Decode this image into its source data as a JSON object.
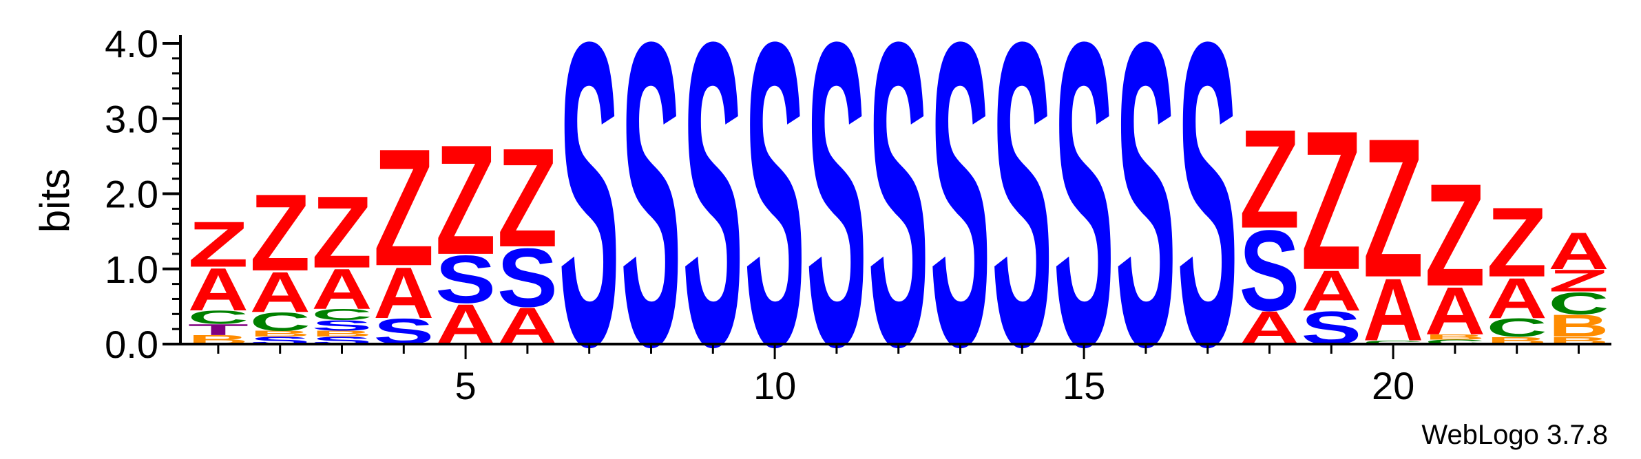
{
  "chart_data": {
    "type": "sequence-logo",
    "ylabel": "bits",
    "xlabel": "",
    "ylim": [
      0,
      4.0
    ],
    "y_ticks": [
      "0.0",
      "1.0",
      "2.0",
      "3.0",
      "4.0"
    ],
    "x_tick_labels": [
      "5",
      "10",
      "15",
      "20"
    ],
    "x_tick_positions": [
      5,
      10,
      15,
      20
    ],
    "positions": [
      1,
      2,
      3,
      4,
      5,
      6,
      7,
      8,
      9,
      10,
      11,
      12,
      13,
      14,
      15,
      16,
      17,
      18,
      19,
      20,
      21,
      22,
      23
    ],
    "footer": "WebLogo 3.7.8",
    "colors": {
      "Z": "#ff0000",
      "A": "#ff0000",
      "S": "#0000ff",
      "C": "#008000",
      "T": "#800080",
      "B": "#ff8c00"
    },
    "stacks": [
      [
        {
          "l": "B",
          "h": 0.12
        },
        {
          "l": "T",
          "h": 0.15
        },
        {
          "l": "C",
          "h": 0.18
        },
        {
          "l": "A",
          "h": 0.58
        },
        {
          "l": "Z",
          "h": 0.62
        }
      ],
      [
        {
          "l": "S",
          "h": 0.1
        },
        {
          "l": "B",
          "h": 0.08
        },
        {
          "l": "C",
          "h": 0.25
        },
        {
          "l": "A",
          "h": 0.55
        },
        {
          "l": "Z",
          "h": 1.05
        }
      ],
      [
        {
          "l": "S",
          "h": 0.1
        },
        {
          "l": "B",
          "h": 0.08
        },
        {
          "l": "S",
          "h": 0.14
        },
        {
          "l": "C",
          "h": 0.15
        },
        {
          "l": "A",
          "h": 0.55
        },
        {
          "l": "Z",
          "h": 0.98
        }
      ],
      [
        {
          "l": "S",
          "h": 0.35
        },
        {
          "l": "A",
          "h": 0.7
        },
        {
          "l": "Z",
          "h": 1.6
        }
      ],
      [
        {
          "l": "A",
          "h": 0.55
        },
        {
          "l": "S",
          "h": 0.65
        },
        {
          "l": "Z",
          "h": 1.5
        }
      ],
      [
        {
          "l": "A",
          "h": 0.5
        },
        {
          "l": "S",
          "h": 0.8
        },
        {
          "l": "Z",
          "h": 1.35
        }
      ],
      [
        {
          "l": "S",
          "h": 4.15
        }
      ],
      [
        {
          "l": "S",
          "h": 4.15
        }
      ],
      [
        {
          "l": "S",
          "h": 4.15
        }
      ],
      [
        {
          "l": "S",
          "h": 4.15
        }
      ],
      [
        {
          "l": "S",
          "h": 4.15
        }
      ],
      [
        {
          "l": "S",
          "h": 4.15
        }
      ],
      [
        {
          "l": "S",
          "h": 4.15
        }
      ],
      [
        {
          "l": "S",
          "h": 4.15
        }
      ],
      [
        {
          "l": "S",
          "h": 4.15
        }
      ],
      [
        {
          "l": "S",
          "h": 4.15
        }
      ],
      [
        {
          "l": "S",
          "h": 4.15
        }
      ],
      [
        {
          "l": "A",
          "h": 0.45
        },
        {
          "l": "S",
          "h": 1.1
        },
        {
          "l": "Z",
          "h": 1.35
        }
      ],
      [
        {
          "l": "S",
          "h": 0.45
        },
        {
          "l": "A",
          "h": 0.55
        },
        {
          "l": "Z",
          "h": 1.9
        }
      ],
      [
        {
          "l": "C",
          "h": 0.05
        },
        {
          "l": "A",
          "h": 0.85
        },
        {
          "l": "Z",
          "h": 1.9
        }
      ],
      [
        {
          "l": "C",
          "h": 0.06
        },
        {
          "l": "B",
          "h": 0.07
        },
        {
          "l": "A",
          "h": 0.65
        },
        {
          "l": "Z",
          "h": 1.4
        }
      ],
      [
        {
          "l": "B",
          "h": 0.1
        },
        {
          "l": "C",
          "h": 0.25
        },
        {
          "l": "A",
          "h": 0.55
        },
        {
          "l": "Z",
          "h": 0.95
        }
      ],
      [
        {
          "l": "B",
          "h": 0.1
        },
        {
          "l": "B",
          "h": 0.3
        },
        {
          "l": "C",
          "h": 0.3
        },
        {
          "l": "Z",
          "h": 0.3
        },
        {
          "l": "A",
          "h": 0.5
        }
      ]
    ]
  }
}
